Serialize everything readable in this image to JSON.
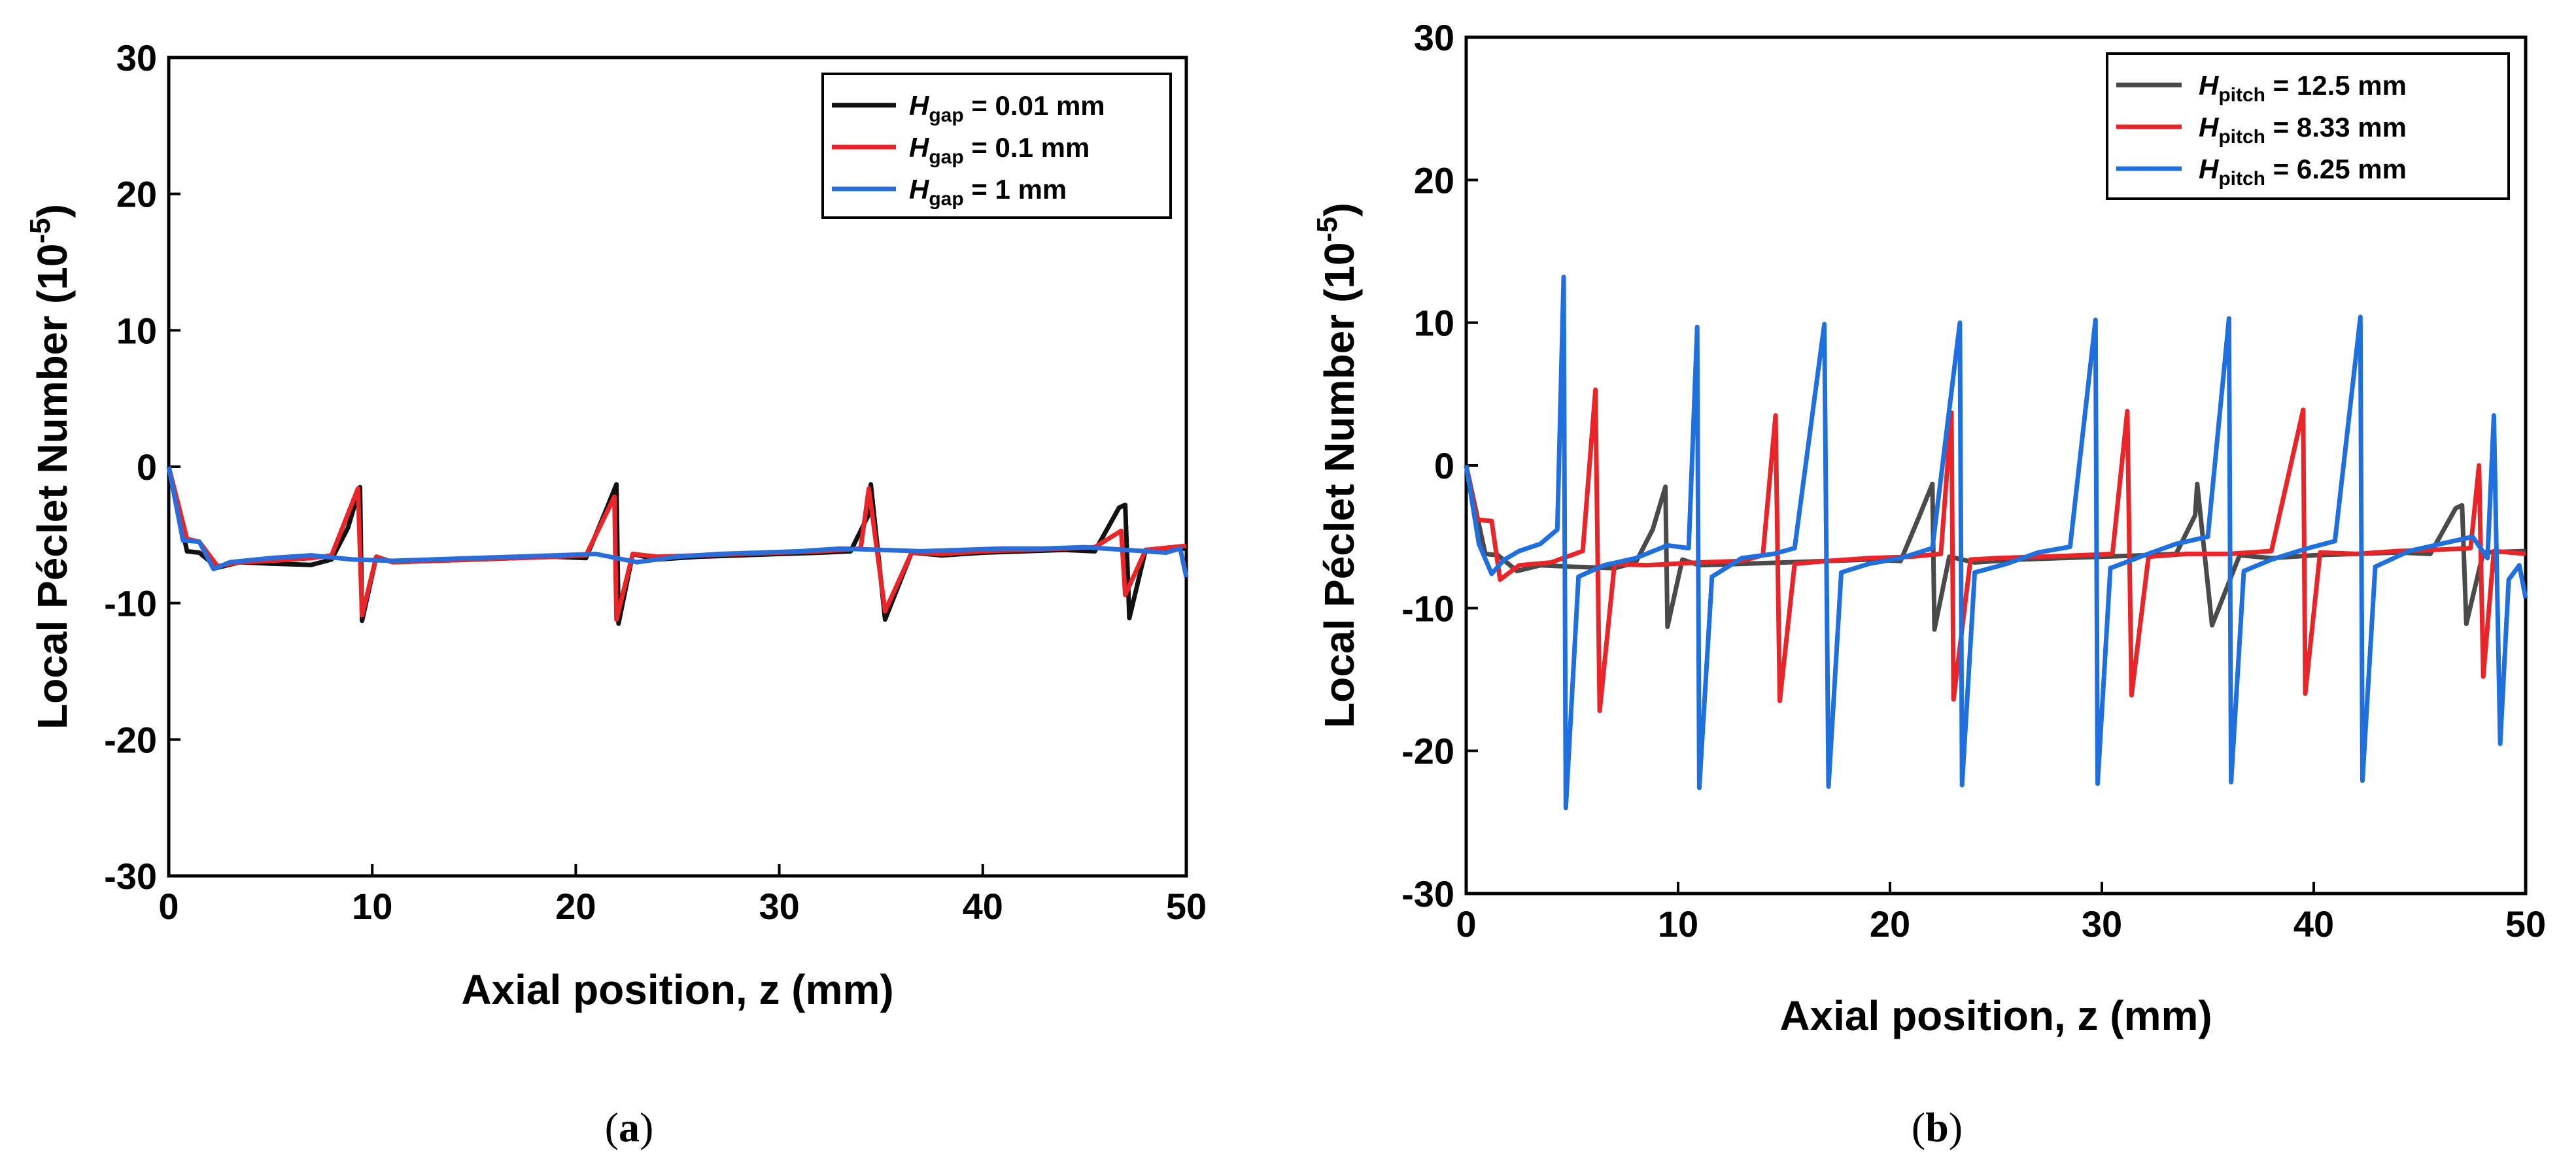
{
  "chart_data": [
    {
      "panel": "a",
      "type": "line",
      "caption_letter": "a",
      "xlabel": "Axial position, z (mm)",
      "ylabel": "Local Péclet Number (10",
      "ylabel_exp": "-5",
      "ylabel_close": ")",
      "xlim": [
        0,
        50
      ],
      "ylim": [
        -30,
        30
      ],
      "xticks": [
        0,
        10,
        20,
        30,
        40,
        50
      ],
      "yticks": [
        30,
        20,
        10,
        0,
        -10,
        -20,
        -30
      ],
      "legend_position": "top-right",
      "series": [
        {
          "name": "H_gap = 0.01 mm",
          "label_var": "H",
          "label_sub": "gap",
          "label_rest": " = 0.01 mm",
          "color": "#111111",
          "x": [
            0,
            0.9,
            1.5,
            2.4,
            3.5,
            5,
            7,
            8,
            8.8,
            9.4,
            9.5,
            10.2,
            11,
            13,
            15,
            17,
            19,
            20.5,
            21.4,
            22,
            22.1,
            22.8,
            24,
            26,
            28,
            30,
            32,
            33.5,
            34.4,
            34.5,
            35.2,
            36.5,
            38,
            40,
            42,
            44,
            45.5,
            46.7,
            47,
            47.2,
            48,
            50
          ],
          "y": [
            0,
            -6.2,
            -6.3,
            -7.4,
            -7,
            -7.1,
            -7.2,
            -6.8,
            -4.5,
            -1.5,
            -11.3,
            -6.6,
            -7,
            -6.9,
            -6.8,
            -6.7,
            -6.6,
            -6.7,
            -3.5,
            -1.3,
            -11.5,
            -6.4,
            -6.8,
            -6.6,
            -6.5,
            -6.4,
            -6.3,
            -6.2,
            -3.5,
            -1.3,
            -11.2,
            -6.3,
            -6.5,
            -6.3,
            -6.2,
            -6.1,
            -6.2,
            -3,
            -2.8,
            -11.1,
            -6.1,
            -6
          ]
        },
        {
          "name": "H_gap = 0.1 mm",
          "label_var": "H",
          "label_sub": "gap",
          "label_rest": " = 0.1 mm",
          "color": "#e8262a",
          "x": [
            0,
            0.9,
            1.5,
            2.4,
            3.5,
            5,
            7,
            8,
            9.3,
            9.5,
            10.2,
            11,
            13,
            15,
            17,
            19,
            20.5,
            21.9,
            22,
            22.8,
            24,
            26,
            28,
            30,
            32,
            34,
            34.4,
            35.2,
            36.5,
            38,
            40,
            42,
            44,
            45.5,
            46.8,
            47,
            48,
            50
          ],
          "y": [
            0,
            -5.3,
            -5.5,
            -7.3,
            -7,
            -6.9,
            -6.7,
            -6.5,
            -1.6,
            -10.9,
            -6.6,
            -7,
            -6.9,
            -6.8,
            -6.7,
            -6.6,
            -6.5,
            -2.2,
            -11.2,
            -6.4,
            -6.6,
            -6.5,
            -6.4,
            -6.3,
            -6.2,
            -6,
            -1.6,
            -10.6,
            -6.3,
            -6.4,
            -6.2,
            -6.1,
            -6,
            -5.9,
            -4.7,
            -9.4,
            -6.1,
            -5.8
          ]
        },
        {
          "name": "H_gap = 1 mm",
          "label_var": "H",
          "label_sub": "gap",
          "label_rest": " = 1 mm",
          "color": "#2a6dd9",
          "x": [
            0,
            0.7,
            1.5,
            2.2,
            3,
            5,
            7,
            9,
            11,
            13,
            15,
            17,
            19,
            21,
            23,
            25,
            27,
            29,
            31,
            33,
            35,
            37,
            39,
            41,
            43,
            45,
            47,
            49,
            49.7,
            50
          ],
          "y": [
            0,
            -5.4,
            -5.5,
            -7.5,
            -7,
            -6.7,
            -6.5,
            -6.8,
            -6.9,
            -6.8,
            -6.7,
            -6.6,
            -6.5,
            -6.4,
            -7,
            -6.6,
            -6.4,
            -6.3,
            -6.2,
            -6,
            -6.1,
            -6.2,
            -6.1,
            -6,
            -6,
            -5.9,
            -6.1,
            -6.3,
            -6,
            -8.1
          ]
        }
      ]
    },
    {
      "panel": "b",
      "type": "line",
      "caption_letter": "b",
      "xlabel": "Axial position, z (mm)",
      "ylabel": "Local Péclet Number (10",
      "ylabel_exp": "-5",
      "ylabel_close": ")",
      "xlim": [
        0,
        50
      ],
      "ylim": [
        -30,
        30
      ],
      "xticks": [
        0,
        10,
        20,
        30,
        40,
        50
      ],
      "yticks": [
        30,
        20,
        10,
        0,
        -10,
        -20,
        -30
      ],
      "legend_position": "top-right",
      "series": [
        {
          "name": "H_pitch = 12.5 mm",
          "label_var": "H",
          "label_sub": "pitch",
          "label_rest": " = 12.5 mm",
          "color": "#4a4a4a",
          "x": [
            0,
            0.9,
            1.5,
            2.4,
            3.5,
            5,
            7,
            8,
            8.8,
            9.4,
            9.5,
            10.2,
            11,
            13,
            15,
            17,
            19,
            20.5,
            21.4,
            22,
            22.1,
            22.8,
            24,
            26,
            28,
            30,
            32,
            33.5,
            34.4,
            34.5,
            35.2,
            36.5,
            38,
            40,
            42,
            44,
            45.5,
            46.7,
            47,
            47.2,
            48,
            50
          ],
          "y": [
            0,
            -6.2,
            -6.3,
            -7.4,
            -7,
            -7.1,
            -7.2,
            -6.8,
            -4.5,
            -1.5,
            -11.3,
            -6.6,
            -7,
            -6.9,
            -6.8,
            -6.7,
            -6.6,
            -6.7,
            -3.5,
            -1.3,
            -11.5,
            -6.4,
            -6.8,
            -6.6,
            -6.5,
            -6.4,
            -6.3,
            -6.2,
            -3.5,
            -1.3,
            -11.2,
            -6.3,
            -6.5,
            -6.3,
            -6.2,
            -6.1,
            -6.2,
            -3,
            -2.8,
            -11.1,
            -6.1,
            -6
          ]
        },
        {
          "name": "H_pitch = 8.33 mm",
          "label_var": "H",
          "label_sub": "pitch",
          "label_rest": " = 8.33 mm",
          "color": "#e8262a",
          "x": [
            0,
            0.5,
            1.2,
            1.6,
            2.5,
            4,
            5.5,
            6.1,
            6.3,
            7,
            8.5,
            11,
            13,
            14,
            14.6,
            14.8,
            15.5,
            17,
            19,
            21,
            22.4,
            22.9,
            23,
            23.8,
            25,
            27,
            29,
            30.5,
            31.2,
            31.4,
            32.2,
            34,
            36,
            38,
            39.5,
            39.6,
            40.3,
            42,
            44,
            46,
            47.4,
            47.8,
            48,
            48.5,
            50
          ],
          "y": [
            0,
            -3.8,
            -3.9,
            -8,
            -7,
            -6.8,
            -6,
            5.3,
            -17.2,
            -6.9,
            -7,
            -6.8,
            -6.7,
            -6.3,
            3.5,
            -16.5,
            -6.9,
            -6.7,
            -6.5,
            -6.4,
            -6.2,
            3.7,
            -16.4,
            -6.6,
            -6.5,
            -6.4,
            -6.3,
            -6.2,
            3.8,
            -16.1,
            -6.4,
            -6.2,
            -6.2,
            -6,
            3.9,
            -16,
            -6.1,
            -6.2,
            -6,
            -5.9,
            -5.8,
            0,
            -14.8,
            -6,
            -6.2
          ]
        },
        {
          "name": "H_pitch = 6.25 mm",
          "label_var": "H",
          "label_sub": "pitch",
          "label_rest": " = 6.25 mm",
          "color": "#1f6fdc",
          "x": [
            0,
            0.6,
            1.2,
            1.8,
            2.5,
            3.5,
            4.3,
            4.6,
            4.7,
            5.3,
            6.5,
            8,
            9.5,
            10.5,
            10.9,
            11,
            11.6,
            13,
            14.5,
            15.5,
            16.9,
            17.1,
            17.7,
            19,
            20.5,
            22,
            23.3,
            23.4,
            24,
            25.5,
            27,
            28.5,
            29.7,
            29.8,
            30.4,
            32,
            33.5,
            35,
            36,
            36.1,
            36.7,
            38,
            39.5,
            41,
            42.2,
            42.3,
            42.9,
            44.5,
            46,
            47.5,
            48.2,
            48.5,
            48.8,
            49.2,
            49.7,
            50
          ],
          "y": [
            0,
            -5.5,
            -7.6,
            -6.6,
            -6,
            -5.5,
            -4.5,
            13.2,
            -24,
            -7.8,
            -7,
            -6.5,
            -5.6,
            -5.8,
            9.7,
            -22.6,
            -7.8,
            -6.5,
            -6.2,
            -5.8,
            9.9,
            -22.5,
            -7.5,
            -6.9,
            -6.5,
            -5.8,
            10,
            -22.4,
            -7.5,
            -6.9,
            -6.1,
            -5.7,
            10.2,
            -22.3,
            -7.2,
            -6.3,
            -5.5,
            -5,
            10.3,
            -22.2,
            -7.4,
            -6.6,
            -5.9,
            -5.3,
            10.4,
            -22.1,
            -7.1,
            -6,
            -5.5,
            -5,
            -6.5,
            3.5,
            -19.5,
            -8,
            -7,
            -9.3
          ]
        }
      ]
    }
  ]
}
